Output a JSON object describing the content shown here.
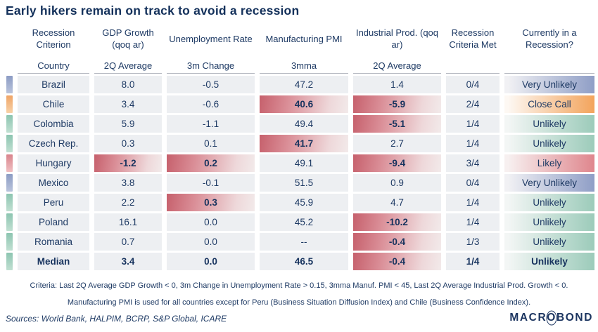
{
  "title": "Early hikers remain on track to avoid a recession",
  "colors": {
    "text": "#1e3a64",
    "cell_bg": "#edeff2",
    "criterion_met_red": "#c6606c",
    "status_very_unlikely_blue": "#8f9ec6",
    "status_close_call_orange": "#f3a45c",
    "status_unlikely_green": "#9ccbba",
    "status_likely_red": "#df868d"
  },
  "table": {
    "headers": [
      {
        "title": "Recession Criterion",
        "sub": "Country"
      },
      {
        "title": "GDP Growth (qoq ar)",
        "sub": "2Q Average"
      },
      {
        "title": "Unemployment Rate",
        "sub": "3m Change"
      },
      {
        "title": "Manufacturing PMI",
        "sub": "3mma"
      },
      {
        "title": "Industrial Prod. (qoq ar)",
        "sub": "2Q Average"
      },
      {
        "title": "Recession Criteria Met",
        "sub": ""
      },
      {
        "title": "Currently in a Recession?",
        "sub": ""
      }
    ],
    "rows": [
      {
        "country": "Brazil",
        "values": [
          "8.0",
          "-0.5",
          "47.2",
          "1.4"
        ],
        "crit": [
          false,
          false,
          false,
          false
        ],
        "met": "0/4",
        "status": "Very Unlikely",
        "level": "very-unlikely",
        "bold": false
      },
      {
        "country": "Chile",
        "values": [
          "3.4",
          "-0.6",
          "40.6",
          "-5.9"
        ],
        "crit": [
          false,
          false,
          true,
          true
        ],
        "met": "2/4",
        "status": "Close Call",
        "level": "close-call",
        "bold": false
      },
      {
        "country": "Colombia",
        "values": [
          "5.9",
          "-1.1",
          "49.4",
          "-5.1"
        ],
        "crit": [
          false,
          false,
          false,
          true
        ],
        "met": "1/4",
        "status": "Unlikely",
        "level": "unlikely",
        "bold": false
      },
      {
        "country": "Czech Rep.",
        "values": [
          "0.3",
          "0.1",
          "41.7",
          "2.7"
        ],
        "crit": [
          false,
          false,
          true,
          false
        ],
        "met": "1/4",
        "status": "Unlikely",
        "level": "unlikely",
        "bold": false
      },
      {
        "country": "Hungary",
        "values": [
          "-1.2",
          "0.2",
          "49.1",
          "-9.4"
        ],
        "crit": [
          true,
          true,
          false,
          true
        ],
        "met": "3/4",
        "status": "Likely",
        "level": "likely",
        "bold": false
      },
      {
        "country": "Mexico",
        "values": [
          "3.8",
          "-0.1",
          "51.5",
          "0.9"
        ],
        "crit": [
          false,
          false,
          false,
          false
        ],
        "met": "0/4",
        "status": "Very Unlikely",
        "level": "very-unlikely",
        "bold": false
      },
      {
        "country": "Peru",
        "values": [
          "2.2",
          "0.3",
          "45.9",
          "4.7"
        ],
        "crit": [
          false,
          true,
          false,
          false
        ],
        "met": "1/4",
        "status": "Unlikely",
        "level": "unlikely",
        "bold": false
      },
      {
        "country": "Poland",
        "values": [
          "16.1",
          "0.0",
          "45.2",
          "-10.2"
        ],
        "crit": [
          false,
          false,
          false,
          true
        ],
        "met": "1/4",
        "status": "Unlikely",
        "level": "unlikely",
        "bold": false
      },
      {
        "country": "Romania",
        "values": [
          "0.7",
          "0.0",
          "--",
          "-0.4"
        ],
        "crit": [
          false,
          false,
          false,
          true
        ],
        "met": "1/3",
        "status": "Unlikely",
        "level": "unlikely",
        "bold": false
      },
      {
        "country": "Median",
        "values": [
          "3.4",
          "0.0",
          "46.5",
          "-0.4"
        ],
        "crit": [
          false,
          false,
          false,
          true
        ],
        "met": "1/4",
        "status": "Unlikely",
        "level": "unlikely",
        "bold": true
      }
    ]
  },
  "chart_data": {
    "type": "table",
    "title": "Early hikers remain on track to avoid a recession",
    "columns": [
      "Country",
      "GDP Growth (qoq ar) 2Q Average",
      "Unemployment Rate 3m Change",
      "Manufacturing PMI 3mma",
      "Industrial Prod. (qoq ar) 2Q Average",
      "Recession Criteria Met",
      "Currently in a Recession?"
    ],
    "rows": [
      [
        "Brazil",
        8.0,
        -0.5,
        47.2,
        1.4,
        "0/4",
        "Very Unlikely"
      ],
      [
        "Chile",
        3.4,
        -0.6,
        40.6,
        -5.9,
        "2/4",
        "Close Call"
      ],
      [
        "Colombia",
        5.9,
        -1.1,
        49.4,
        -5.1,
        "1/4",
        "Unlikely"
      ],
      [
        "Czech Rep.",
        0.3,
        0.1,
        41.7,
        2.7,
        "1/4",
        "Unlikely"
      ],
      [
        "Hungary",
        -1.2,
        0.2,
        49.1,
        -9.4,
        "3/4",
        "Likely"
      ],
      [
        "Mexico",
        3.8,
        -0.1,
        51.5,
        0.9,
        "0/4",
        "Very Unlikely"
      ],
      [
        "Peru",
        2.2,
        0.3,
        45.9,
        4.7,
        "1/4",
        "Unlikely"
      ],
      [
        "Poland",
        16.1,
        0.0,
        45.2,
        -10.2,
        "1/4",
        "Unlikely"
      ],
      [
        "Romania",
        0.7,
        0.0,
        "--",
        -0.4,
        "1/3",
        "Unlikely"
      ],
      [
        "Median",
        3.4,
        0.0,
        46.5,
        -0.4,
        "1/4",
        "Unlikely"
      ]
    ]
  },
  "footnotes": {
    "criteria": "Criteria: Last 2Q Average GDP Growth < 0, 3m Change in Unemployment Rate > 0.15, 3mma Manuf. PMI < 45, Last 2Q Average Industrial Prod. Growth < 0.",
    "note": "Manufacturing PMI is used for all countries except for Peru (Business Situation Diffusion Index) and Chile (Business Confidence Index).",
    "sources": "Sources: World Bank, HALPIM, BCRP, S&P Global, ICARE"
  },
  "logo": {
    "pre": "MACR",
    "o": "O",
    "post": "BOND"
  }
}
